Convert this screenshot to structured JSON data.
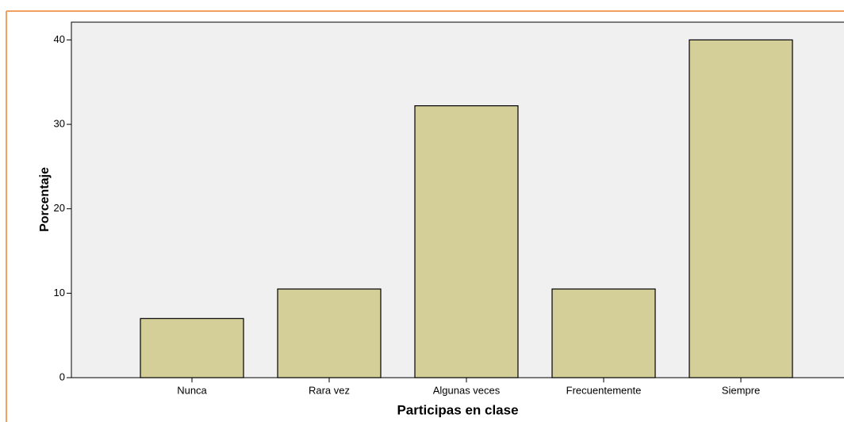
{
  "chart_data": {
    "type": "bar",
    "categories": [
      "Nunca",
      "Rara vez",
      "Algunas veces",
      "Frecuentemente",
      "Siempre"
    ],
    "values": [
      7.0,
      10.5,
      32.2,
      10.5,
      40.0
    ],
    "color": "#d4cf99",
    "xlabel": "Participas en clase",
    "ylabel": "Porcentaje",
    "ylim": [
      0,
      42.1
    ],
    "yticks": [
      0,
      10,
      20,
      30,
      40
    ],
    "grid": false
  }
}
